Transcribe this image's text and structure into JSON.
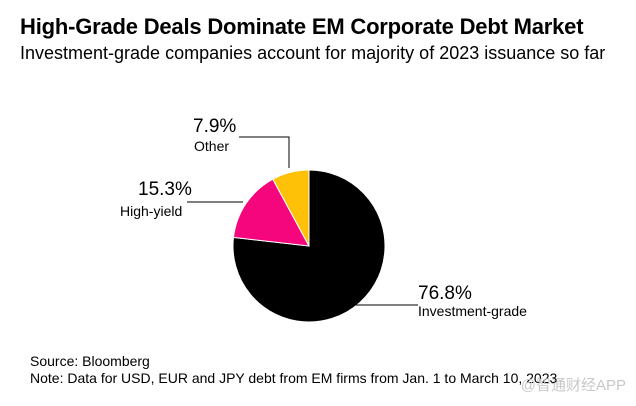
{
  "header": {
    "title": "High-Grade Deals Dominate EM Corporate Debt Market",
    "subtitle": "Investment-grade companies account for majority of 2023 issuance so far"
  },
  "chart_data": {
    "type": "pie",
    "title": "High-Grade Deals Dominate EM Corporate Debt Market",
    "subtitle": "Investment-grade companies account for majority of 2023 issuance so far",
    "slices": [
      {
        "name": "Investment-grade",
        "value": 76.8,
        "label": "76.8%",
        "color": "#000000"
      },
      {
        "name": "High-yield",
        "value": 15.3,
        "label": "15.3%",
        "color": "#f5067c"
      },
      {
        "name": "Other",
        "value": 7.9,
        "label": "7.9%",
        "color": "#ffc107"
      }
    ]
  },
  "footer": {
    "source": "Source: Bloomberg",
    "note": "Note: Data for USD, EUR and JPY debt from EM firms from Jan. 1 to March 10, 2023"
  },
  "watermark": "@智通财经APP"
}
